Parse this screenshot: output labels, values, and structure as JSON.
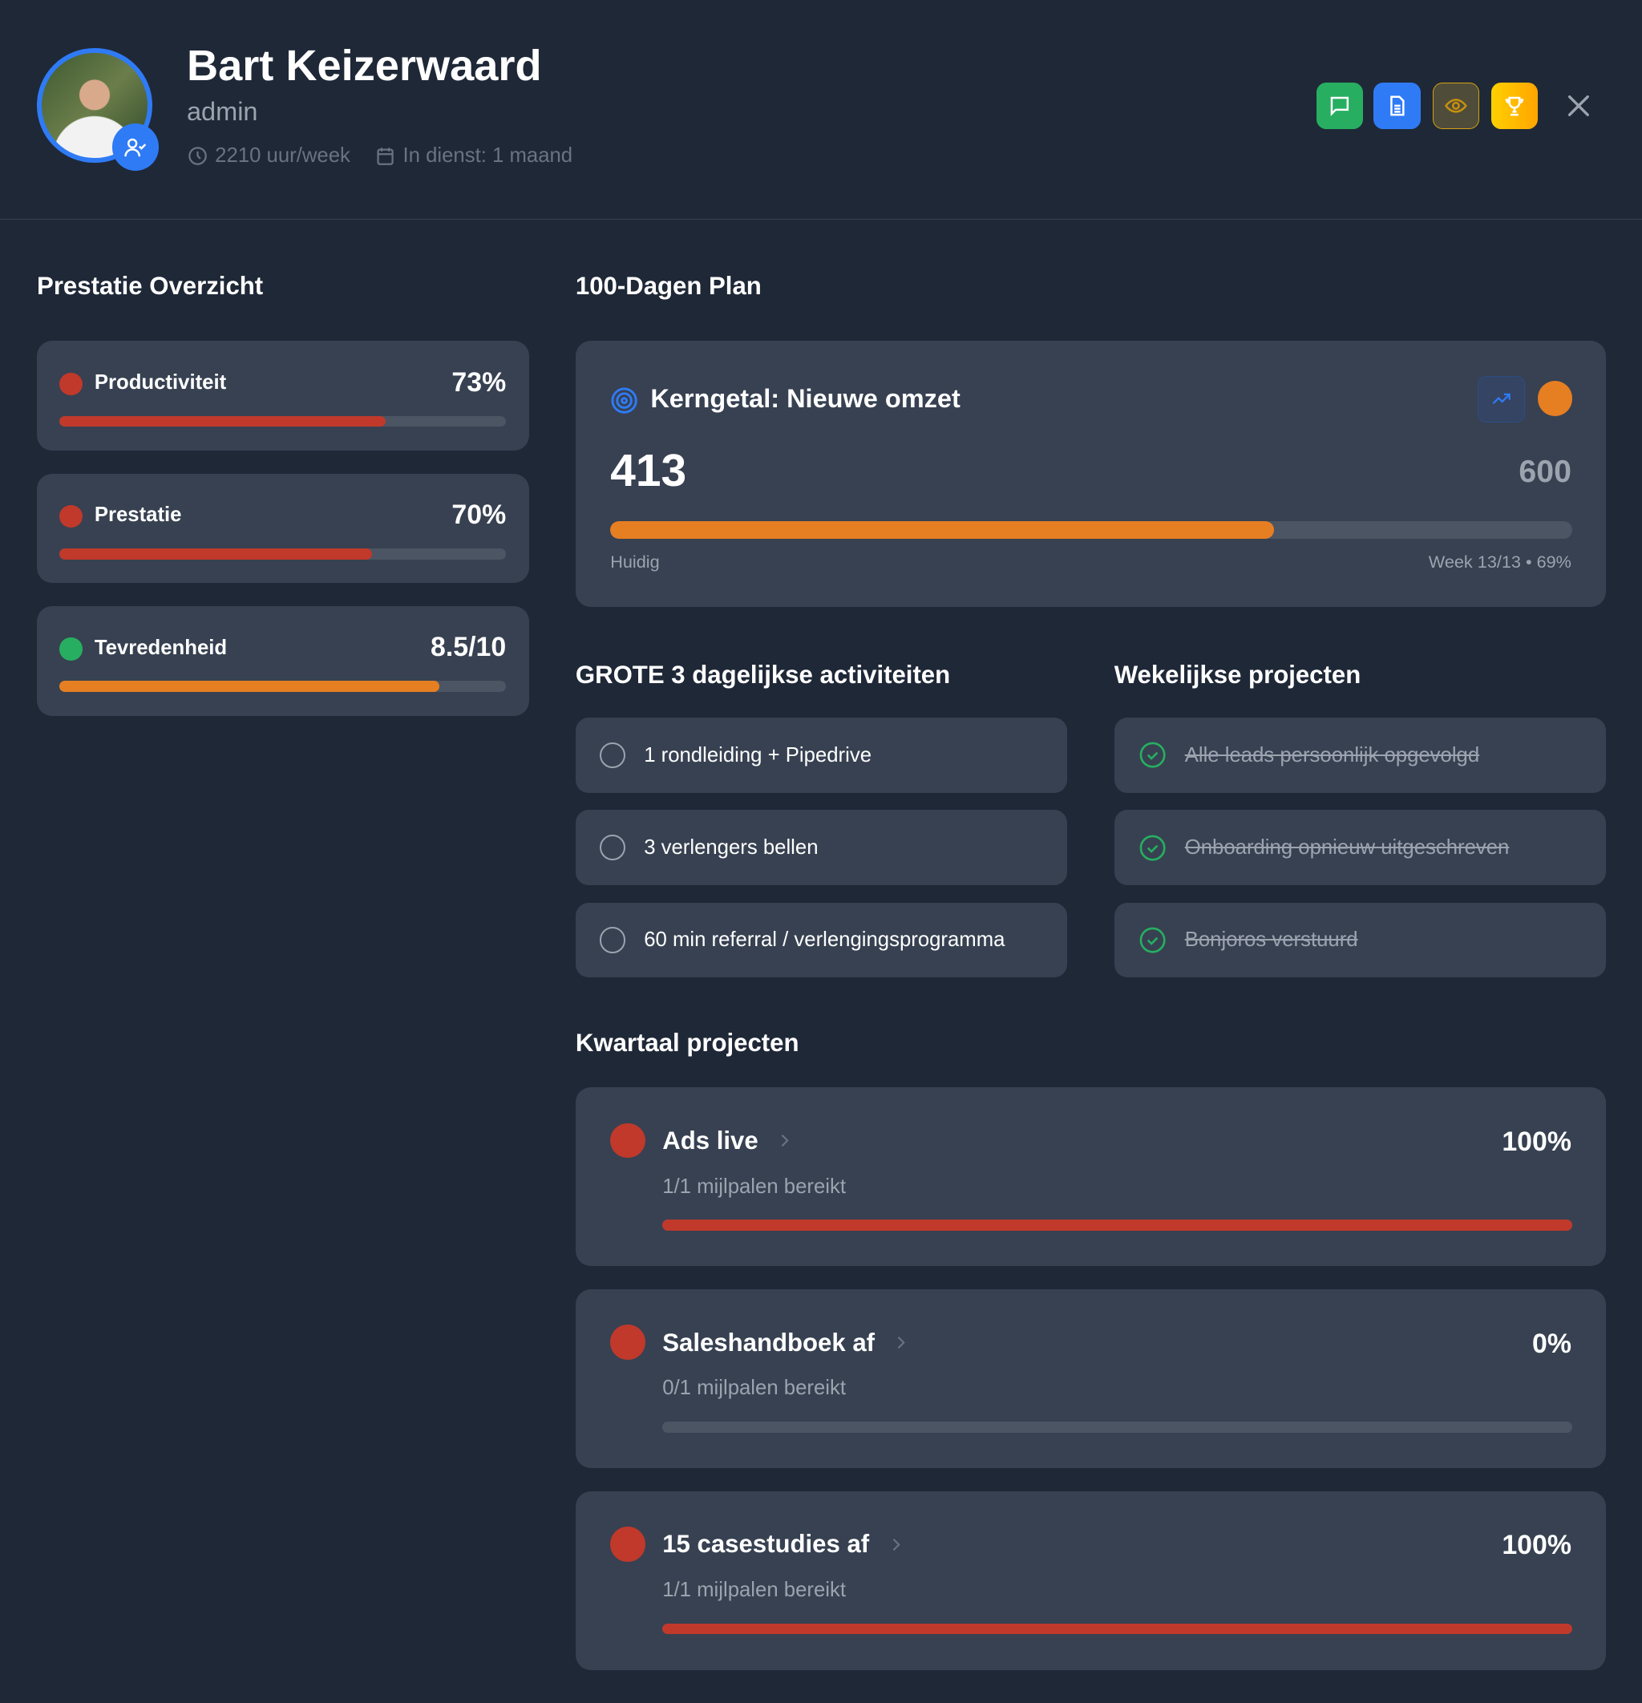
{
  "header": {
    "name": "Bart Keizerwaard",
    "role": "admin",
    "hours": "2210 uur/week",
    "tenure": "In dienst: 1 maand"
  },
  "performance": {
    "title": "Prestatie Overzicht",
    "items": [
      {
        "label": "Productiviteit",
        "value": "73%",
        "progress": 73,
        "dot_color": "#c0392b",
        "bar_color": "#c0392b"
      },
      {
        "label": "Prestatie",
        "value": "70%",
        "progress": 70,
        "dot_color": "#c0392b",
        "bar_color": "#c0392b"
      },
      {
        "label": "Tevredenheid",
        "value": "8.5/10",
        "progress": 85,
        "dot_color": "#27ae60",
        "bar_color": "#e67e22"
      }
    ]
  },
  "plan": {
    "title": "100-Dagen Plan",
    "kpi_title": "Kerngetal: Nieuwe omzet",
    "current": "413",
    "target": "600",
    "progress": 69,
    "current_label": "Huidig",
    "week_label": "Week 13/13 • 69%"
  },
  "daily": {
    "title": "GROTE 3 dagelijkse activiteiten",
    "items": [
      "1 rondleiding + Pipedrive",
      "3 verlengers bellen",
      "60 min referral / verlengingsprogramma"
    ]
  },
  "weekly": {
    "title": "Wekelijkse projecten",
    "items": [
      "Alle leads persoonlijk opgevolgd",
      "Onboarding opnieuw uitgeschreven",
      "Bonjoros verstuurd"
    ]
  },
  "quarter": {
    "title": "Kwartaal projecten",
    "items": [
      {
        "title": "Ads live",
        "sub": "1/1 mijlpalen bereikt",
        "value": "100%",
        "progress": 100
      },
      {
        "title": "Saleshandboek af",
        "sub": "0/1 mijlpalen bereikt",
        "value": "0%",
        "progress": 0
      },
      {
        "title": "15 casestudies af",
        "sub": "1/1 mijlpalen bereikt",
        "value": "100%",
        "progress": 100
      }
    ]
  },
  "colors": {
    "accent": "#2f7bf6",
    "red": "#c0392b",
    "orange": "#e67e22",
    "green": "#27ae60"
  }
}
